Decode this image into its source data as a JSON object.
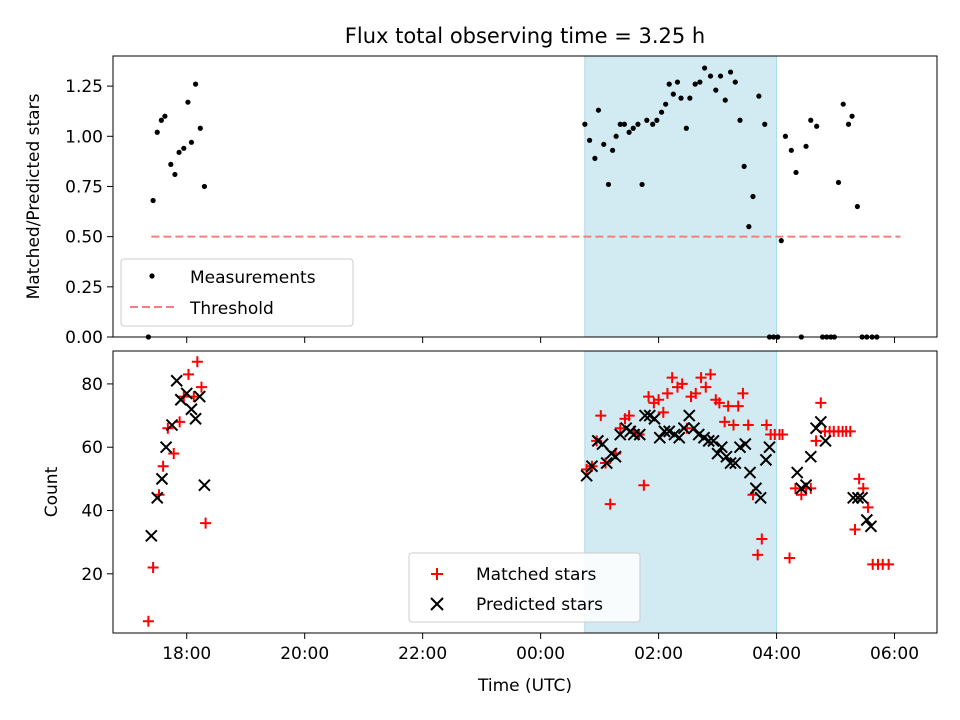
{
  "chart_data": {
    "title": "Flux total observing time = 3.25 h",
    "xlabel": "Time (UTC)",
    "x_unit": "hours since 00:00 UTC",
    "xlim": [
      -7.25,
      6.72
    ],
    "xticks": [
      -6,
      -4,
      -2,
      0,
      2,
      4,
      6
    ],
    "xtick_labels": [
      "18:00",
      "20:00",
      "22:00",
      "00:00",
      "02:00",
      "04:00",
      "06:00"
    ],
    "shaded_interval": [
      0.75,
      4.0
    ],
    "colors": {
      "shade": "#add8e6",
      "matched": "#ff0000",
      "predicted": "#000000",
      "threshold": "#f08080",
      "measurement": "#000000"
    },
    "top": {
      "type": "scatter",
      "ylabel": "Matched/Predicted stars",
      "ylim": [
        0.0,
        1.4
      ],
      "yticks": [
        0.0,
        0.25,
        0.5,
        0.75,
        1.0,
        1.25
      ],
      "ytick_labels": [
        "0.00",
        "0.25",
        "0.50",
        "0.75",
        "1.00",
        "1.25"
      ],
      "threshold": {
        "value": 0.5,
        "x_range": [
          -6.6,
          6.1
        ]
      },
      "legend": [
        "Measurements",
        "Threshold"
      ],
      "points": [
        [
          -6.65,
          0.0
        ],
        [
          -6.57,
          0.68
        ],
        [
          -6.5,
          1.02
        ],
        [
          -6.43,
          1.08
        ],
        [
          -6.37,
          1.1
        ],
        [
          -6.27,
          0.86
        ],
        [
          -6.2,
          0.81
        ],
        [
          -6.13,
          0.92
        ],
        [
          -6.05,
          0.94
        ],
        [
          -5.98,
          1.17
        ],
        [
          -5.92,
          0.97
        ],
        [
          -5.85,
          1.26
        ],
        [
          -5.77,
          1.04
        ],
        [
          -5.7,
          0.75
        ],
        [
          0.75,
          1.06
        ],
        [
          0.83,
          0.98
        ],
        [
          0.92,
          0.89
        ],
        [
          0.98,
          1.13
        ],
        [
          1.07,
          0.96
        ],
        [
          1.15,
          0.76
        ],
        [
          1.22,
          0.93
        ],
        [
          1.28,
          1.0
        ],
        [
          1.35,
          1.06
        ],
        [
          1.42,
          1.06
        ],
        [
          1.5,
          1.02
        ],
        [
          1.57,
          1.04
        ],
        [
          1.65,
          1.06
        ],
        [
          1.72,
          0.76
        ],
        [
          1.8,
          1.08
        ],
        [
          1.9,
          1.06
        ],
        [
          1.97,
          1.08
        ],
        [
          2.05,
          1.12
        ],
        [
          2.12,
          1.16
        ],
        [
          2.18,
          1.26
        ],
        [
          2.25,
          1.21
        ],
        [
          2.32,
          1.27
        ],
        [
          2.38,
          1.19
        ],
        [
          2.47,
          1.04
        ],
        [
          2.53,
          1.19
        ],
        [
          2.62,
          1.26
        ],
        [
          2.7,
          1.27
        ],
        [
          2.78,
          1.34
        ],
        [
          2.88,
          1.3
        ],
        [
          2.97,
          1.23
        ],
        [
          3.05,
          1.3
        ],
        [
          3.13,
          1.18
        ],
        [
          3.22,
          1.32
        ],
        [
          3.3,
          1.27
        ],
        [
          3.38,
          1.08
        ],
        [
          3.45,
          0.85
        ],
        [
          3.53,
          0.55
        ],
        [
          3.6,
          0.7
        ],
        [
          3.7,
          1.2
        ],
        [
          3.8,
          1.06
        ],
        [
          3.88,
          0.0
        ],
        [
          3.95,
          0.0
        ],
        [
          4.02,
          0.0
        ],
        [
          4.08,
          0.48
        ],
        [
          4.15,
          1.0
        ],
        [
          4.25,
          0.93
        ],
        [
          4.33,
          0.82
        ],
        [
          4.42,
          0.0
        ],
        [
          4.5,
          0.95
        ],
        [
          4.58,
          1.08
        ],
        [
          4.68,
          1.05
        ],
        [
          4.78,
          0.0
        ],
        [
          4.85,
          0.0
        ],
        [
          4.92,
          0.0
        ],
        [
          4.98,
          0.0
        ],
        [
          5.05,
          0.77
        ],
        [
          5.13,
          1.16
        ],
        [
          5.22,
          1.06
        ],
        [
          5.28,
          1.1
        ],
        [
          5.37,
          0.65
        ],
        [
          5.45,
          0.0
        ],
        [
          5.53,
          0.0
        ],
        [
          5.62,
          0.0
        ],
        [
          5.7,
          0.0
        ]
      ]
    },
    "bottom": {
      "type": "scatter",
      "ylabel": "Count",
      "ylim": [
        1.3,
        90.4
      ],
      "yticks": [
        20,
        40,
        60,
        80
      ],
      "ytick_labels": [
        "20",
        "40",
        "60",
        "80"
      ],
      "legend": [
        "Matched stars",
        "Predicted stars"
      ],
      "matched": [
        [
          -6.65,
          5
        ],
        [
          -6.57,
          22
        ],
        [
          -6.47,
          45
        ],
        [
          -6.4,
          54
        ],
        [
          -6.32,
          66
        ],
        [
          -6.22,
          58
        ],
        [
          -6.12,
          68
        ],
        [
          -6.05,
          76
        ],
        [
          -5.97,
          83
        ],
        [
          -5.88,
          76
        ],
        [
          -5.82,
          87
        ],
        [
          -5.75,
          79
        ],
        [
          -5.68,
          36
        ],
        [
          0.78,
          53
        ],
        [
          0.87,
          54
        ],
        [
          0.95,
          62
        ],
        [
          1.02,
          70
        ],
        [
          1.1,
          55
        ],
        [
          1.18,
          42
        ],
        [
          1.27,
          58
        ],
        [
          1.35,
          66
        ],
        [
          1.43,
          69
        ],
        [
          1.5,
          70
        ],
        [
          1.58,
          65
        ],
        [
          1.67,
          64
        ],
        [
          1.75,
          48
        ],
        [
          1.83,
          76
        ],
        [
          1.92,
          74
        ],
        [
          2.0,
          75
        ],
        [
          2.08,
          71
        ],
        [
          2.15,
          77
        ],
        [
          2.23,
          82
        ],
        [
          2.32,
          79
        ],
        [
          2.4,
          80
        ],
        [
          2.48,
          66
        ],
        [
          2.55,
          76
        ],
        [
          2.63,
          77
        ],
        [
          2.72,
          82
        ],
        [
          2.8,
          79
        ],
        [
          2.88,
          83
        ],
        [
          2.97,
          75
        ],
        [
          3.03,
          74
        ],
        [
          3.12,
          68
        ],
        [
          3.18,
          73
        ],
        [
          3.27,
          67
        ],
        [
          3.35,
          73
        ],
        [
          3.43,
          77
        ],
        [
          3.52,
          67
        ],
        [
          3.6,
          45
        ],
        [
          3.68,
          26
        ],
        [
          3.75,
          31
        ],
        [
          3.83,
          67
        ],
        [
          3.9,
          64
        ],
        [
          3.97,
          64
        ],
        [
          4.05,
          64
        ],
        [
          4.1,
          64
        ],
        [
          4.22,
          25
        ],
        [
          4.32,
          47
        ],
        [
          4.42,
          45
        ],
        [
          4.5,
          47
        ],
        [
          4.58,
          47
        ],
        [
          4.67,
          62
        ],
        [
          4.75,
          74
        ],
        [
          4.82,
          65
        ],
        [
          4.9,
          65
        ],
        [
          4.97,
          65
        ],
        [
          5.05,
          65
        ],
        [
          5.12,
          65
        ],
        [
          5.18,
          65
        ],
        [
          5.25,
          65
        ],
        [
          5.33,
          34
        ],
        [
          5.4,
          50
        ],
        [
          5.47,
          47
        ],
        [
          5.55,
          41
        ],
        [
          5.63,
          23
        ],
        [
          5.72,
          23
        ],
        [
          5.8,
          23
        ],
        [
          5.9,
          23
        ]
      ],
      "predicted": [
        [
          -6.6,
          32
        ],
        [
          -6.5,
          44
        ],
        [
          -6.42,
          50
        ],
        [
          -6.35,
          60
        ],
        [
          -6.25,
          67
        ],
        [
          -6.17,
          81
        ],
        [
          -6.1,
          75
        ],
        [
          -6.0,
          77
        ],
        [
          -5.92,
          72
        ],
        [
          -5.85,
          69
        ],
        [
          -5.78,
          76
        ],
        [
          -5.7,
          48
        ],
        [
          0.78,
          51
        ],
        [
          0.87,
          54
        ],
        [
          0.97,
          62
        ],
        [
          1.05,
          61
        ],
        [
          1.12,
          55
        ],
        [
          1.2,
          58
        ],
        [
          1.27,
          57
        ],
        [
          1.35,
          64
        ],
        [
          1.45,
          66
        ],
        [
          1.52,
          65
        ],
        [
          1.58,
          64
        ],
        [
          1.68,
          64
        ],
        [
          1.77,
          70
        ],
        [
          1.85,
          70
        ],
        [
          1.93,
          69
        ],
        [
          2.02,
          63
        ],
        [
          2.1,
          65
        ],
        [
          2.18,
          65
        ],
        [
          2.27,
          64
        ],
        [
          2.35,
          63
        ],
        [
          2.43,
          66
        ],
        [
          2.52,
          70
        ],
        [
          2.6,
          66
        ],
        [
          2.68,
          64
        ],
        [
          2.77,
          63
        ],
        [
          2.85,
          62
        ],
        [
          2.93,
          62
        ],
        [
          3.0,
          58
        ],
        [
          3.07,
          60
        ],
        [
          3.15,
          57
        ],
        [
          3.22,
          55
        ],
        [
          3.3,
          55
        ],
        [
          3.38,
          60
        ],
        [
          3.47,
          61
        ],
        [
          3.55,
          52
        ],
        [
          3.65,
          47
        ],
        [
          3.73,
          44
        ],
        [
          3.82,
          56
        ],
        [
          3.88,
          60
        ],
        [
          4.35,
          52
        ],
        [
          4.42,
          47
        ],
        [
          4.5,
          48
        ],
        [
          4.58,
          57
        ],
        [
          4.67,
          66
        ],
        [
          4.75,
          68
        ],
        [
          4.83,
          62
        ],
        [
          5.3,
          44
        ],
        [
          5.38,
          44
        ],
        [
          5.45,
          44
        ],
        [
          5.53,
          37
        ],
        [
          5.6,
          35
        ]
      ]
    }
  }
}
